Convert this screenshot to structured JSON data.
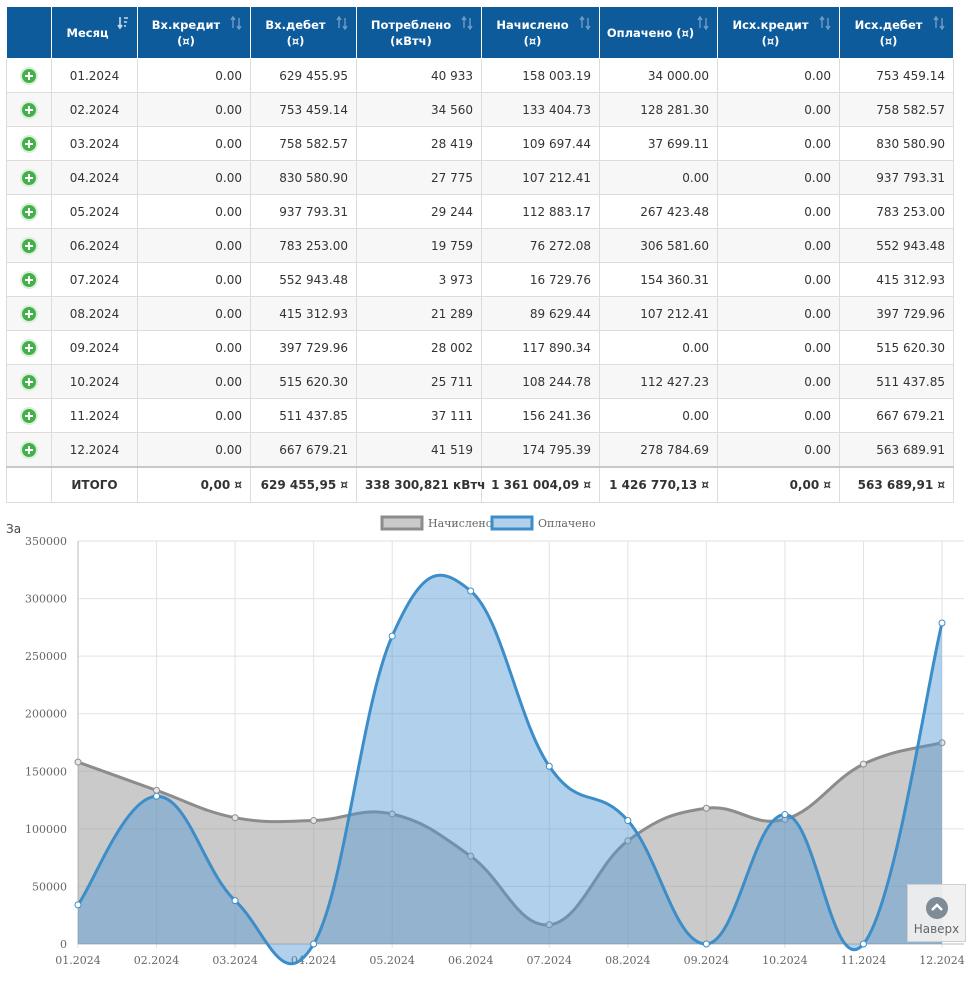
{
  "table": {
    "headers": [
      {
        "key": "icon",
        "label": ""
      },
      {
        "key": "month",
        "label": "Месяц",
        "sort": "active"
      },
      {
        "key": "in_credit",
        "label": "Вх.кредит\n(¤)",
        "sort": "both"
      },
      {
        "key": "in_debit",
        "label": "Вх.дебет\n(¤)",
        "sort": "both"
      },
      {
        "key": "consumed",
        "label": "Потреблено\n(кВтч)",
        "sort": "both"
      },
      {
        "key": "charged",
        "label": "Начислено\n(¤)",
        "sort": "both"
      },
      {
        "key": "paid",
        "label": "Оплачено (¤)",
        "sort": "both"
      },
      {
        "key": "out_credit",
        "label": "Исх.кредит\n(¤)",
        "sort": "both"
      },
      {
        "key": "out_debit",
        "label": "Исх.дебет\n(¤)",
        "sort": "both"
      }
    ],
    "rows": [
      [
        "01.2024",
        "0.00",
        "629 455.95",
        "40 933",
        "158 003.19",
        "34 000.00",
        "0.00",
        "753 459.14"
      ],
      [
        "02.2024",
        "0.00",
        "753 459.14",
        "34 560",
        "133 404.73",
        "128 281.30",
        "0.00",
        "758 582.57"
      ],
      [
        "03.2024",
        "0.00",
        "758 582.57",
        "28 419",
        "109 697.44",
        "37 699.11",
        "0.00",
        "830 580.90"
      ],
      [
        "04.2024",
        "0.00",
        "830 580.90",
        "27 775",
        "107 212.41",
        "0.00",
        "0.00",
        "937 793.31"
      ],
      [
        "05.2024",
        "0.00",
        "937 793.31",
        "29 244",
        "112 883.17",
        "267 423.48",
        "0.00",
        "783 253.00"
      ],
      [
        "06.2024",
        "0.00",
        "783 253.00",
        "19 759",
        "76 272.08",
        "306 581.60",
        "0.00",
        "552 943.48"
      ],
      [
        "07.2024",
        "0.00",
        "552 943.48",
        "3 973",
        "16 729.76",
        "154 360.31",
        "0.00",
        "415 312.93"
      ],
      [
        "08.2024",
        "0.00",
        "415 312.93",
        "21 289",
        "89 629.44",
        "107 212.41",
        "0.00",
        "397 729.96"
      ],
      [
        "09.2024",
        "0.00",
        "397 729.96",
        "28 002",
        "117 890.34",
        "0.00",
        "0.00",
        "515 620.30"
      ],
      [
        "10.2024",
        "0.00",
        "515 620.30",
        "25 711",
        "108 244.78",
        "112 427.23",
        "0.00",
        "511 437.85"
      ],
      [
        "11.2024",
        "0.00",
        "511 437.85",
        "37 111",
        "156 241.36",
        "0.00",
        "0.00",
        "667 679.21"
      ],
      [
        "12.2024",
        "0.00",
        "667 679.21",
        "41 519",
        "174 795.39",
        "278 784.69",
        "0.00",
        "563 689.91"
      ]
    ],
    "total": [
      "ИТОГО",
      "0,00 ¤",
      "629 455,95 ¤",
      "338 300,821 кВтч",
      "1 361 004,09 ¤",
      "1 426 770,13 ¤",
      "0,00 ¤",
      "563 689,91 ¤"
    ]
  },
  "cut_label": "За",
  "scroll_top": {
    "label": "Наверх",
    "icon": "chevron-up-icon"
  },
  "colors": {
    "header_bg": "#0e5b9b",
    "charged": "#8c8c8c",
    "paid": "#3c8dc8",
    "plus": "#43b049"
  },
  "chart_data": {
    "type": "area",
    "x": [
      "01.2024",
      "02.2024",
      "03.2024",
      "04.2024",
      "05.2024",
      "06.2024",
      "07.2024",
      "08.2024",
      "09.2024",
      "10.2024",
      "11.2024",
      "12.2024"
    ],
    "series": [
      {
        "name": "Начислено",
        "color": "#8c8c8c",
        "values": [
          158003.19,
          133404.73,
          109697.44,
          107212.41,
          112883.17,
          76272.08,
          16729.76,
          89629.44,
          117890.34,
          108244.78,
          156241.36,
          174795.39
        ]
      },
      {
        "name": "Оплачено",
        "color": "#3c8dc8",
        "values": [
          34000,
          128281.3,
          37699.11,
          0,
          267423.48,
          306581.6,
          154360.31,
          107212.41,
          0,
          112427.23,
          0,
          278784.69
        ]
      }
    ],
    "ylim": [
      0,
      350000
    ],
    "yticks": [
      0,
      50000,
      100000,
      150000,
      200000,
      250000,
      300000,
      350000
    ],
    "legend": "top",
    "grid": true
  }
}
